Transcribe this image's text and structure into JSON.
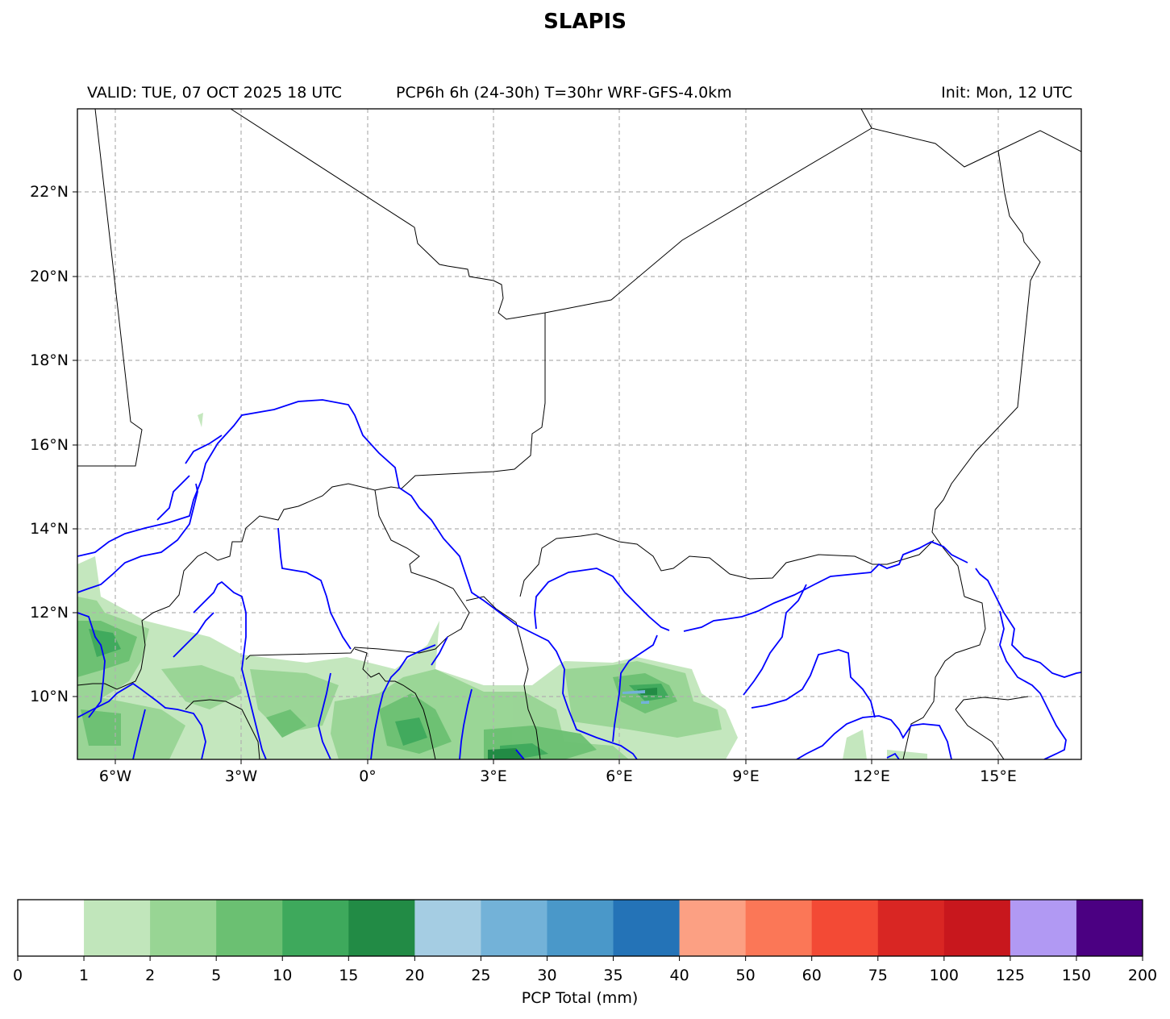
{
  "title": "SLAPIS",
  "subtitle": {
    "left": "VALID: TUE, 07 OCT 2025 18 UTC",
    "center": "PCP6h 6h (24-30h) T=30hr WRF-GFS-4.0km",
    "right": "Init: Mon, 12 UTC"
  },
  "map": {
    "lon_range": [
      -7.5,
      16.8
    ],
    "lat_range": [
      8.5,
      24.0
    ],
    "x_ticks": [
      "6°W",
      "3°W",
      "0°",
      "3°E",
      "6°E",
      "9°E",
      "12°E",
      "15°E"
    ],
    "y_ticks": [
      "22°N",
      "20°N",
      "18°N",
      "16°N",
      "14°N",
      "12°N",
      "10°N"
    ],
    "gridlines": true,
    "border_color": "#000000",
    "river_color": "#0000ff"
  },
  "colorbar": {
    "label": "PCP Total (mm)",
    "ticks": [
      "0",
      "1",
      "2",
      "5",
      "10",
      "15",
      "20",
      "25",
      "30",
      "35",
      "40",
      "50",
      "60",
      "75",
      "100",
      "125",
      "150",
      "200"
    ],
    "colors": [
      "#ffffff",
      "#c1e6bb",
      "#98d594",
      "#6bc072",
      "#3ea95c",
      "#228b45",
      "#a5cde3",
      "#73b2d8",
      "#4a98c9",
      "#2473b7",
      "#fca083",
      "#fb7757",
      "#f34a35",
      "#d92623",
      "#c8171d",
      "#b199f3",
      "#4b0082"
    ]
  }
}
